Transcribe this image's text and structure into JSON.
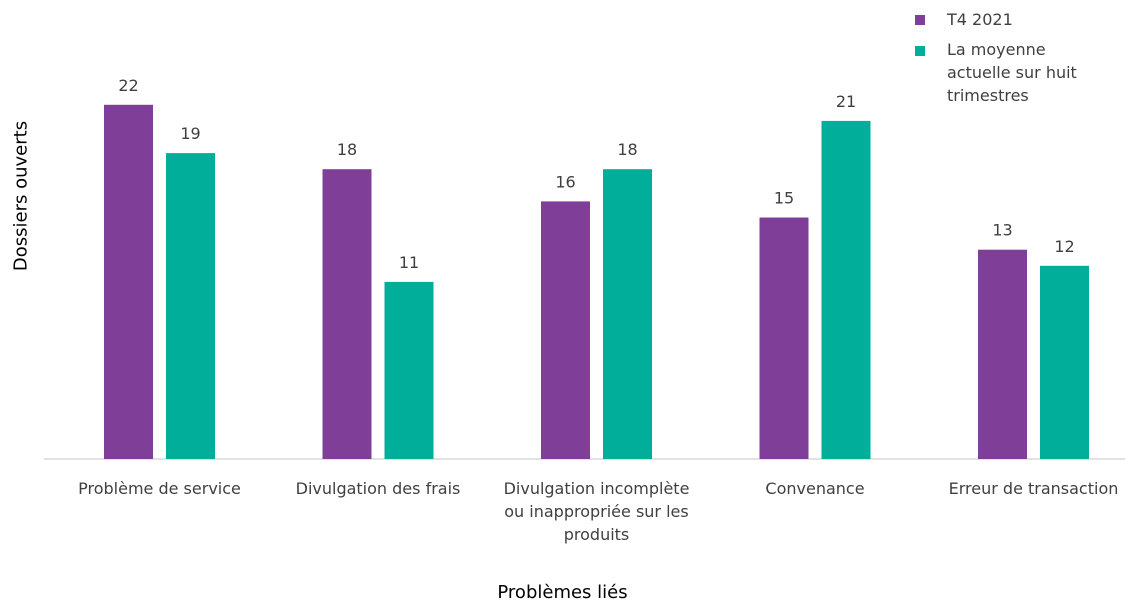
{
  "chart_data": {
    "type": "bar",
    "xlabel": "Problèmes liés",
    "ylabel": "Dossiers ouverts",
    "categories": [
      "Problème de service",
      "Divulgation des frais",
      "Divulgation incomplète ou inappropriée sur les produits",
      "Convenance",
      "Erreur de transaction"
    ],
    "category_label_lines": [
      [
        "Problème de service"
      ],
      [
        "Divulgation des frais"
      ],
      [
        "Divulgation incomplète",
        "ou inappropriée sur les",
        "produits"
      ],
      [
        "Convenance"
      ],
      [
        "Erreur de transaction"
      ]
    ],
    "series": [
      {
        "name": "T4 2021",
        "values": [
          22,
          18,
          16,
          15,
          13
        ],
        "color": "#7F3F98"
      },
      {
        "name": "La moyenne actuelle sur huit trimestres",
        "values": [
          19,
          11,
          18,
          21,
          12
        ],
        "color": "#00AE9A"
      }
    ],
    "ylim": [
      0,
      25
    ],
    "grid": false,
    "legend_position": "top-right",
    "data_labels": true
  }
}
